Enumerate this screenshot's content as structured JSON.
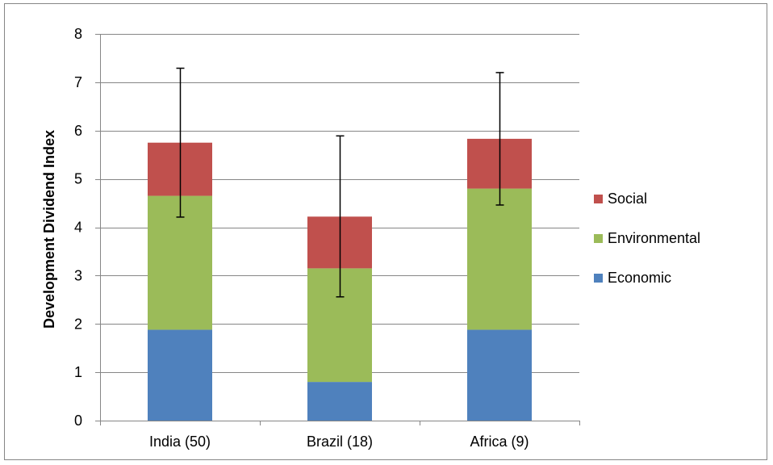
{
  "chart_data": {
    "type": "bar",
    "stacked": true,
    "title": "",
    "xlabel": "",
    "ylabel": "Development Dividend Index",
    "ylim": [
      0,
      8
    ],
    "yticks": [
      0,
      1,
      2,
      3,
      4,
      5,
      6,
      7,
      8
    ],
    "grid": true,
    "legend_position": "right",
    "categories": [
      "India (50)",
      "Brazil (18)",
      "Africa (9)"
    ],
    "series": [
      {
        "name": "Economic",
        "color": "#4F81BD",
        "values": [
          1.88,
          0.8,
          1.88
        ]
      },
      {
        "name": "Environmental",
        "color": "#9BBB59",
        "values": [
          2.77,
          2.35,
          2.92
        ]
      },
      {
        "name": "Social",
        "color": "#C0504D",
        "values": [
          1.1,
          1.07,
          1.03
        ]
      }
    ],
    "error_bars": [
      {
        "center": 5.75,
        "low": 4.21,
        "high": 7.29
      },
      {
        "center": 4.22,
        "low": 2.56,
        "high": 5.89
      },
      {
        "center": 5.83,
        "low": 4.46,
        "high": 7.2
      }
    ],
    "legend_order": [
      "Social",
      "Environmental",
      "Economic"
    ]
  }
}
